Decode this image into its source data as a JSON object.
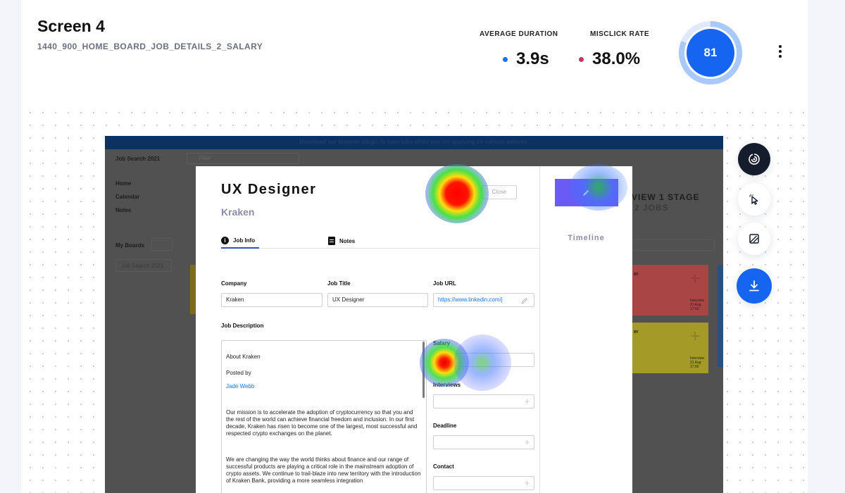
{
  "screen": {
    "title": "Screen 4",
    "subtitle": "1440_900_HOME_BOARD_JOB_DETAILS_2_SALARY"
  },
  "metrics": {
    "avg_duration": {
      "label": "AVERAGE DURATION",
      "value": "3.9s",
      "dot_color": "#1a73e8"
    },
    "misclick_rate": {
      "label": "MISCLICK RATE",
      "value": "38.0%",
      "dot_color": "#c23a5a"
    }
  },
  "score": {
    "value": "81",
    "progress": 0.81,
    "color": "#1565f0",
    "track_color": "#a9c8fb"
  },
  "toolbar": {
    "tools": [
      {
        "name": "heatmap-tool",
        "icon": "heatmap-icon",
        "active": true
      },
      {
        "name": "clicks-tool",
        "icon": "cursor-icon",
        "active": false
      },
      {
        "name": "image-tool",
        "icon": "image-icon",
        "active": false
      },
      {
        "name": "download-tool",
        "icon": "download-icon",
        "active": false
      }
    ]
  },
  "screenshot": {
    "banner": "Download our browser plugin to save jobs while you are applying on various website.",
    "app_name": "Job Search 2021",
    "search_placeholder": "Filter",
    "nav": [
      "Home",
      "Calendar",
      "Notes"
    ],
    "my_boards": "My Boards",
    "board_item": "Job Search 2021",
    "stage": {
      "title": "VIEW 1 STAGE",
      "count": "2 JOBS"
    },
    "cards": [
      {
        "name": "er",
        "meta1": "Interview",
        "meta2": "21 Aug",
        "meta3": "17:00",
        "color": "#a94545"
      },
      {
        "name": "er",
        "meta1": "Interview",
        "meta2": "21 Aug",
        "meta3": "17:00",
        "color": "#a39a28"
      }
    ],
    "modal": {
      "title": "UX Designer",
      "company": "Kraken",
      "close_label": "Close",
      "tabs": [
        "Job Info",
        "Notes"
      ],
      "fields": {
        "company_label": "Company",
        "company_value": "Kraken",
        "job_title_label": "Job Title",
        "job_title_value": "UX Designer",
        "job_url_label": "Job URL",
        "job_url_value": "https://www.linkedin.com/j",
        "description_label": "Job Description",
        "salary_label": "Salary",
        "interviews_label": "Interviews",
        "deadline_label": "Deadline",
        "contact_label": "Contact"
      },
      "description": {
        "about": "About Kraken",
        "posted_by": "Posted by",
        "author": "Jade Webb",
        "para1": " Our mission is to accelerate the adoption of cryptocurrency so that you and the rest of the world can achieve financial freedom and inclusion. In our first decade, Kraken has risen to become one of the largest, most successful and respected crypto exchanges on the planet.",
        "para2": "We are changing the way the world thinks about finance and our range of successful products are playing a critical role in the mainstream adoption of crypto assets. We continue to trail-blaze into new territory with the introduction of Kraken Bank, providing a more seamless integration"
      },
      "timeline_label": "Timeline"
    }
  }
}
